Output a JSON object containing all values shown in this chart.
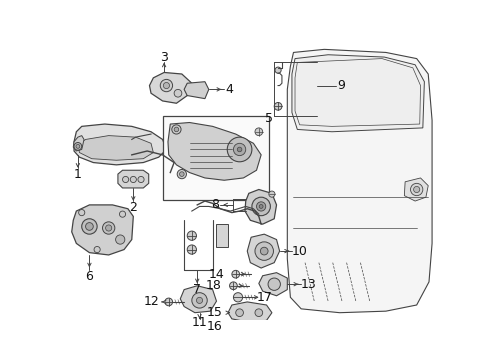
{
  "bg_color": "#ffffff",
  "lc": "#444444",
  "lw": 0.7,
  "fig_w": 4.9,
  "fig_h": 3.6,
  "dpi": 100
}
